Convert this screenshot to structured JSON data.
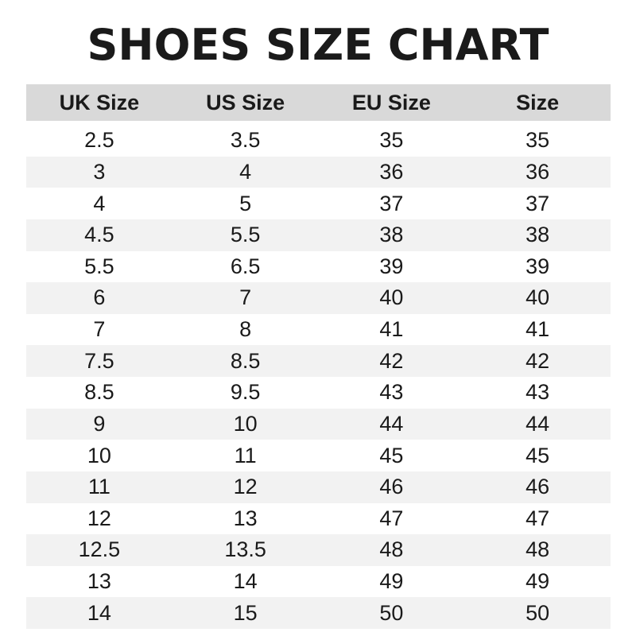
{
  "chart_data": {
    "type": "table",
    "title": "SHOES SIZE CHART",
    "columns": [
      "UK Size",
      "US Size",
      "EU Size",
      "Size"
    ],
    "rows": [
      [
        "2.5",
        "3.5",
        "35",
        "35"
      ],
      [
        "3",
        "4",
        "36",
        "36"
      ],
      [
        "4",
        "5",
        "37",
        "37"
      ],
      [
        "4.5",
        "5.5",
        "38",
        "38"
      ],
      [
        "5.5",
        "6.5",
        "39",
        "39"
      ],
      [
        "6",
        "7",
        "40",
        "40"
      ],
      [
        "7",
        "8",
        "41",
        "41"
      ],
      [
        "7.5",
        "8.5",
        "42",
        "42"
      ],
      [
        "8.5",
        "9.5",
        "43",
        "43"
      ],
      [
        "9",
        "10",
        "44",
        "44"
      ],
      [
        "10",
        "11",
        "45",
        "45"
      ],
      [
        "11",
        "12",
        "46",
        "46"
      ],
      [
        "12",
        "13",
        "47",
        "47"
      ],
      [
        "12.5",
        "13.5",
        "48",
        "48"
      ],
      [
        "13",
        "14",
        "49",
        "49"
      ],
      [
        "14",
        "15",
        "50",
        "50"
      ]
    ],
    "colors": {
      "header_bg": "#d9d9d9",
      "alt_row_bg": "#f2f2f2",
      "text": "#1a1a1a"
    }
  }
}
